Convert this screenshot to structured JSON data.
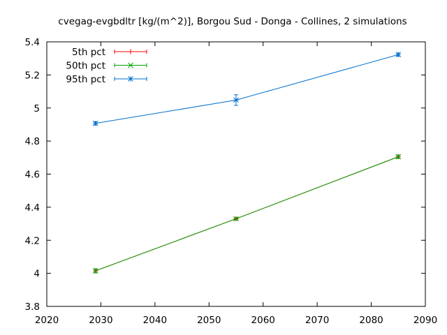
{
  "chart_data": {
    "type": "line",
    "title": "cvegag-evgbdltr [kg/(m^2)], Borgou Sud - Donga - Collines, 2 simulations",
    "xlim": [
      2020,
      2090
    ],
    "ylim": [
      3.8,
      5.4
    ],
    "x_ticks": [
      2020,
      2030,
      2040,
      2050,
      2060,
      2070,
      2080,
      2090
    ],
    "y_ticks": [
      3.8,
      4,
      4.2,
      4.4,
      4.6,
      4.8,
      5,
      5.2,
      5.4
    ],
    "grid": false,
    "legend_position": "top-left",
    "series": [
      {
        "name": "5th pct",
        "color": "#ff0000",
        "marker": "plus",
        "x": [
          2029,
          2055,
          2085
        ],
        "y": [
          4.015,
          4.33,
          4.705
        ],
        "err": [
          0.012,
          0.007,
          0.01
        ]
      },
      {
        "name": "50th pct",
        "color": "#00a000",
        "marker": "cross",
        "x": [
          2029,
          2055,
          2085
        ],
        "y": [
          4.015,
          4.33,
          4.705
        ],
        "err": [
          0.012,
          0.007,
          0.01
        ]
      },
      {
        "name": "95th pct",
        "color": "#0070d0",
        "marker": "star",
        "x": [
          2029,
          2055,
          2085
        ],
        "y": [
          4.907,
          5.048,
          5.323
        ],
        "err": [
          0.01,
          0.032,
          0.01
        ]
      }
    ]
  }
}
